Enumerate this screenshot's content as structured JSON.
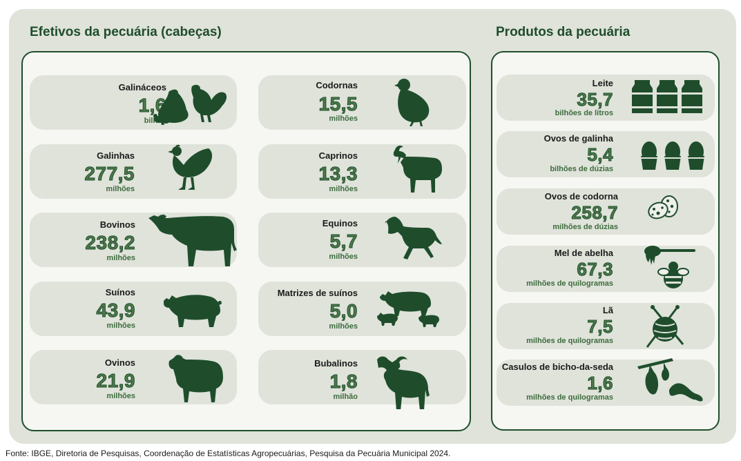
{
  "left_title": "Efetivos da pecuária (cabeças)",
  "right_title": "Produtos da pecuária",
  "livestock": [
    {
      "label": "Galináceos",
      "value": "1,6",
      "unit": "bilhão",
      "icon": "hen-rooster-chicks-icon"
    },
    {
      "label": "Codornas",
      "value": "15,5",
      "unit": "milhões",
      "icon": "quail-icon"
    },
    {
      "label": "Galinhas",
      "value": "277,5",
      "unit": "milhões",
      "icon": "hen-icon"
    },
    {
      "label": "Caprinos",
      "value": "13,3",
      "unit": "milhões",
      "icon": "goat-icon"
    },
    {
      "label": "Bovinos",
      "value": "238,2",
      "unit": "milhões",
      "icon": "cow-icon"
    },
    {
      "label": "Equinos",
      "value": "5,7",
      "unit": "milhões",
      "icon": "horse-icon"
    },
    {
      "label": "Suínos",
      "value": "43,9",
      "unit": "milhões",
      "icon": "pig-icon"
    },
    {
      "label": "Matrizes de suínos",
      "value": "5,0",
      "unit": "milhões",
      "icon": "sow-piglets-icon"
    },
    {
      "label": "Ovinos",
      "value": "21,9",
      "unit": "milhões",
      "icon": "sheep-icon"
    },
    {
      "label": "Bubalinos",
      "value": "1,8",
      "unit": "milhão",
      "icon": "buffalo-icon"
    }
  ],
  "products": [
    {
      "label": "Leite",
      "value": "35,7",
      "unit": "bilhões de litros",
      "icon": "milk-cans-icon"
    },
    {
      "label": "Ovos de galinha",
      "value": "5,4",
      "unit": "bilhões de dúzias",
      "icon": "eggs-icon"
    },
    {
      "label": "Ovos de codorna",
      "value": "258,7",
      "unit": "milhões de dúzias",
      "icon": "quail-eggs-icon"
    },
    {
      "label": "Mel de abelha",
      "value": "67,3",
      "unit": "milhões de quilogramas",
      "icon": "honey-bee-icon"
    },
    {
      "label": "Lã",
      "value": "7,5",
      "unit": "milhões de quilogramas",
      "icon": "yarn-ball-icon"
    },
    {
      "label": "Casulos de bicho-da-seda",
      "value": "1,6",
      "unit": "milhões de quilogramas",
      "icon": "silkworm-icon"
    }
  ],
  "source": "Fonte: IBGE, Diretoria de Pesquisas, Coordenação de Estatísticas Agropecuárias, Pesquisa da Pecuária Municipal 2024.",
  "colors": {
    "dark_green": "#1f4d2c",
    "value_green": "#4e7a4a",
    "panel": "#dfe3da"
  }
}
